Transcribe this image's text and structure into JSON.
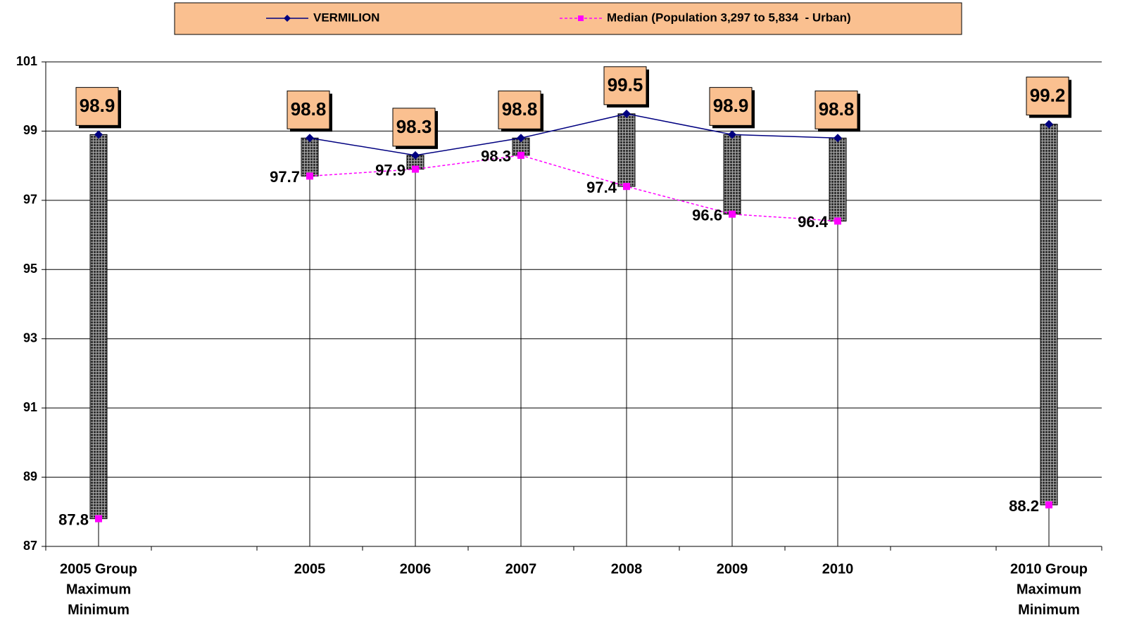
{
  "chart_data": {
    "type": "line",
    "categories": [
      [
        "2005 Group",
        "Maximum",
        "Minimum"
      ],
      null,
      [
        "2005"
      ],
      [
        "2006"
      ],
      [
        "2007"
      ],
      [
        "2008"
      ],
      [
        "2009"
      ],
      [
        "2010"
      ],
      null,
      [
        "2010 Group",
        "Maximum",
        "Minimum"
      ]
    ],
    "series": [
      {
        "name": "VERMILION",
        "color": "#000080",
        "values": [
          98.9,
          null,
          98.8,
          98.3,
          98.8,
          99.5,
          98.9,
          98.8,
          null,
          99.2
        ]
      },
      {
        "name": "Median (Population 3,297 to 5,834  - Urban)",
        "color": "#ff00ff",
        "values": [
          87.8,
          null,
          97.7,
          97.9,
          98.3,
          97.4,
          96.6,
          96.4,
          null,
          88.2
        ]
      }
    ],
    "ylim": [
      87,
      101
    ],
    "yticks": [
      87,
      89,
      91,
      93,
      95,
      97,
      99,
      101
    ],
    "grid": true,
    "legend": "top"
  }
}
